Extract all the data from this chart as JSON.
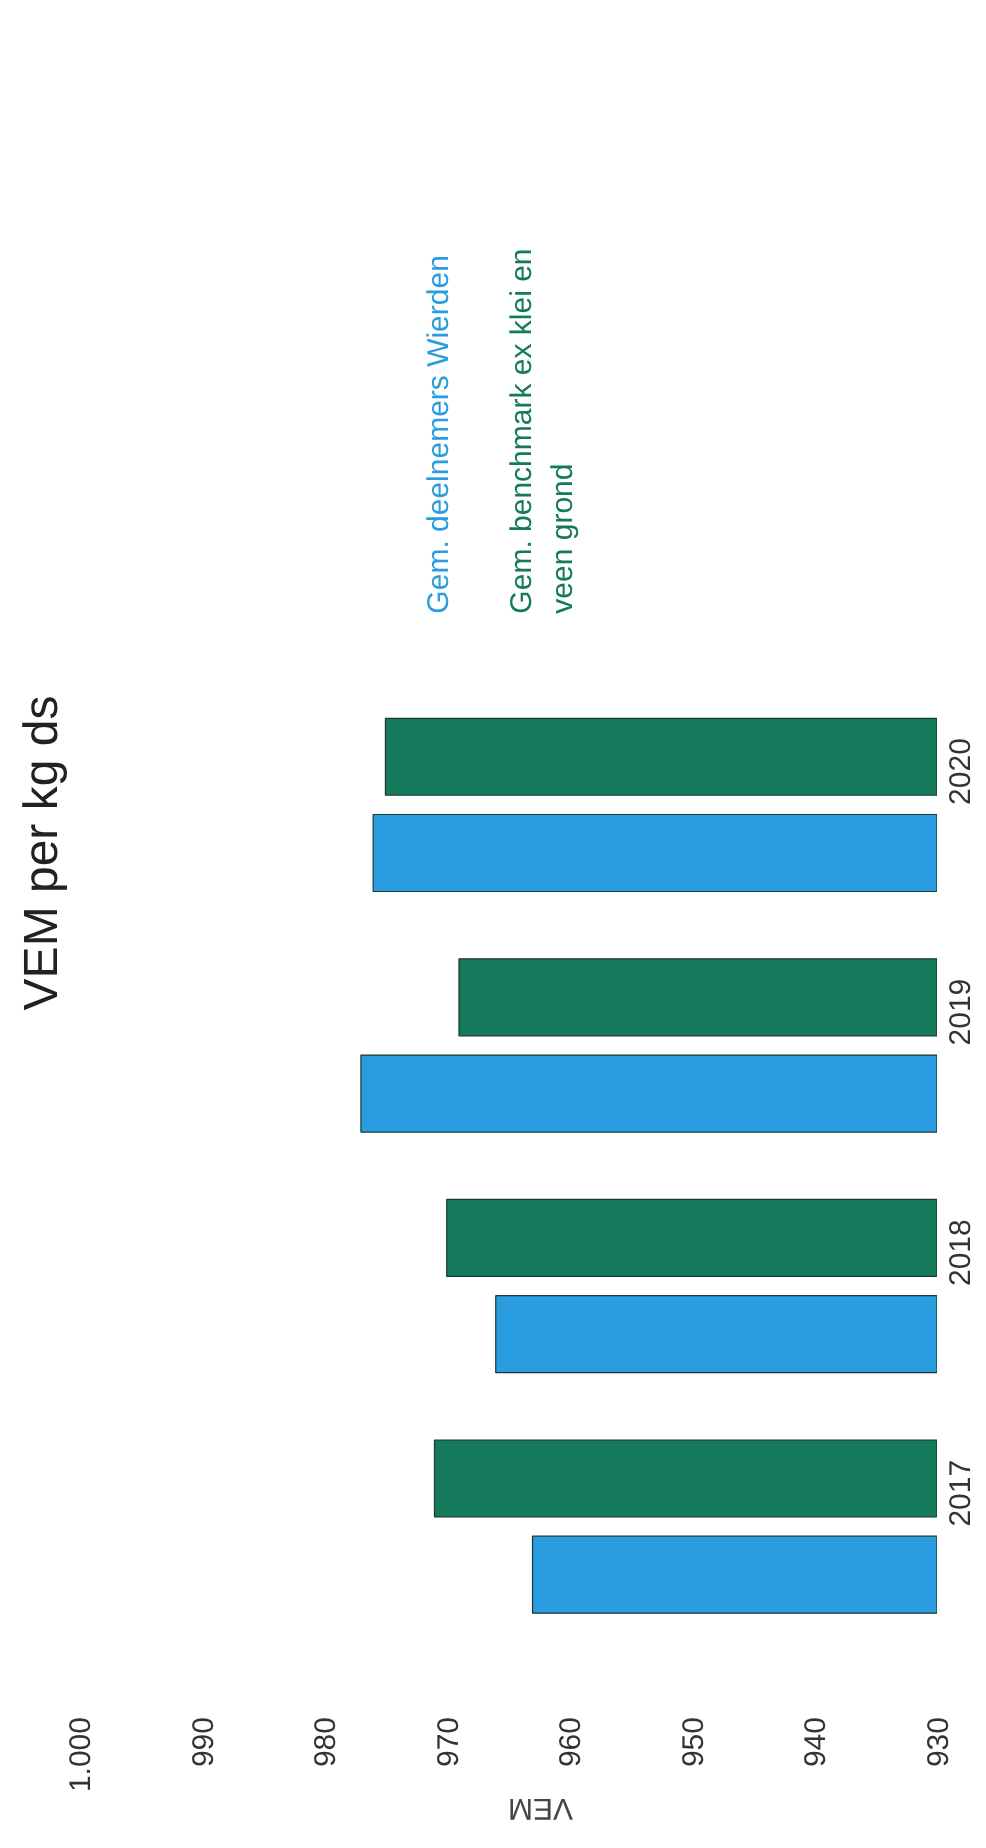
{
  "chart_data": {
    "type": "bar",
    "orientation": "horizontal",
    "title": "VEM per kg ds",
    "xlabel": "VEM",
    "categories": [
      "2020",
      "2019",
      "2018",
      "2017"
    ],
    "series": [
      {
        "name": "Gem. deelnemers Wierden",
        "color": "#2a9de0",
        "values": [
          976,
          977,
          966,
          963
        ]
      },
      {
        "name": "Gem. benchmark ex klei en veen grond",
        "color": "#157a5c",
        "values": [
          975,
          969,
          970,
          971
        ]
      }
    ],
    "xlim": [
      1000,
      930
    ],
    "xticks": [
      {
        "value": 1000,
        "label": "1.000"
      },
      990,
      980,
      970,
      960,
      950,
      940,
      930
    ],
    "grid": false,
    "legend": "top"
  }
}
